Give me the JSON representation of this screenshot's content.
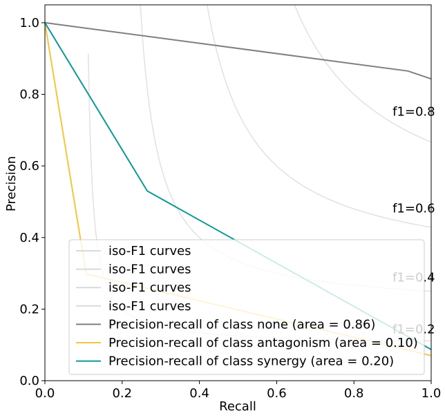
{
  "chart_data": {
    "type": "line",
    "xlabel": "Recall",
    "ylabel": "Precision",
    "xlim": [
      0.0,
      1.0
    ],
    "ylim": [
      0.0,
      1.05
    ],
    "x_ticks": [
      "0.0",
      "0.2",
      "0.4",
      "0.6",
      "0.8",
      "1.0"
    ],
    "y_ticks": [
      "0.0",
      "0.2",
      "0.4",
      "0.6",
      "0.8",
      "1.0"
    ],
    "grid": false,
    "legend_position": "lower-center",
    "iso_f1": {
      "values": [
        0.2,
        0.4,
        0.6,
        0.8
      ],
      "labels": [
        "f1=0.2",
        "f1=0.4",
        "f1=0.6",
        "f1=0.8"
      ],
      "legend_label": "iso-F1 curves",
      "color": "#d9d9d9"
    },
    "series": [
      {
        "name": "Precision-recall of class none (area = 0.86)",
        "color": "#7f7f7f",
        "x": [
          0.0,
          0.94,
          1.0
        ],
        "y": [
          1.0,
          0.865,
          0.843
        ]
      },
      {
        "name": "Precision-recall of class antagonism (area = 0.10)",
        "color": "#f5c53c",
        "x": [
          0.0,
          0.107,
          1.0
        ],
        "y": [
          1.0,
          0.298,
          0.07
        ]
      },
      {
        "name": "Precision-recall of class synergy (area = 0.20)",
        "color": "#0b9a99",
        "x": [
          0.0,
          0.265,
          1.0
        ],
        "y": [
          1.0,
          0.53,
          0.087
        ]
      }
    ]
  }
}
